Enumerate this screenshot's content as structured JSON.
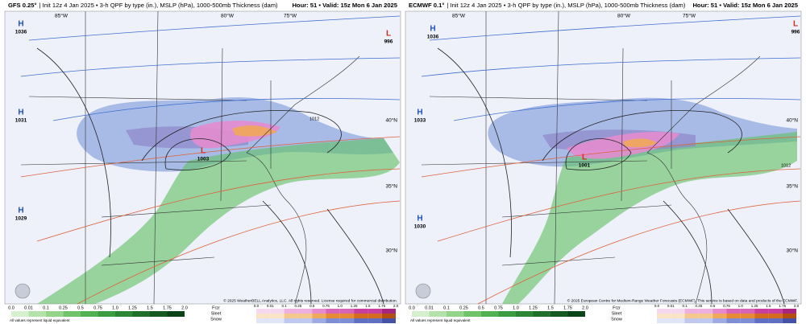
{
  "panels": [
    {
      "model": "GFS 0.25°",
      "description": "| Init 12z 4 Jan 2025 • 3-h QPF by type (in.), MSLP (hPa), 1000-500mb Thickness (dam)",
      "hour_valid": "Hour: 51 • Valid: 15z Mon 6 Jan 2025",
      "centers": [
        {
          "letter": "H",
          "value": "1036"
        },
        {
          "letter": "L",
          "value": "996"
        },
        {
          "letter": "H",
          "value": "1031"
        },
        {
          "letter": "L",
          "value": "1003"
        },
        {
          "letter": "H",
          "value": "1029"
        }
      ],
      "longitudes": [
        "85°W",
        "80°W",
        "75°W"
      ],
      "latitudes": [
        "40°N",
        "35°N",
        "30°N"
      ],
      "isobar_labels": [
        "1012"
      ],
      "credit": "© 2025 WeatherBELL Analytics, LLC. All rights reserved. License required for commercial distribution."
    },
    {
      "model": "ECMWF 0.1°",
      "description": "| Init 12z 4 Jan 2025 • 3-h QPF by type (in.), MSLP (hPa), 1000-500mb Thickness (dam)",
      "hour_valid": "Hour: 51 • Valid: 15z Mon 6 Jan 2025",
      "centers": [
        {
          "letter": "H",
          "value": "1036"
        },
        {
          "letter": "L",
          "value": "996"
        },
        {
          "letter": "H",
          "value": "1033"
        },
        {
          "letter": "L",
          "value": "1001"
        },
        {
          "letter": "H",
          "value": "1030"
        }
      ],
      "longitudes": [
        "85°W",
        "80°W",
        "75°W"
      ],
      "latitudes": [
        "40°N",
        "35°N",
        "30°N"
      ],
      "isobar_labels": [
        "1012"
      ],
      "credit": "© 2025 European Centre for Medium-Range Weather Forecasts (ECMWF). This service is based on data and products of the ECMWF."
    }
  ],
  "legend": {
    "values": [
      "0.0",
      "0.01",
      "0.1",
      "0.25",
      "0.5",
      "0.75",
      "1.0",
      "1.25",
      "1.5",
      "1.75",
      "2.0"
    ],
    "types": [
      "Frzr",
      "Sleet",
      "Snow"
    ],
    "note": "All values represent liquid equivalent"
  }
}
